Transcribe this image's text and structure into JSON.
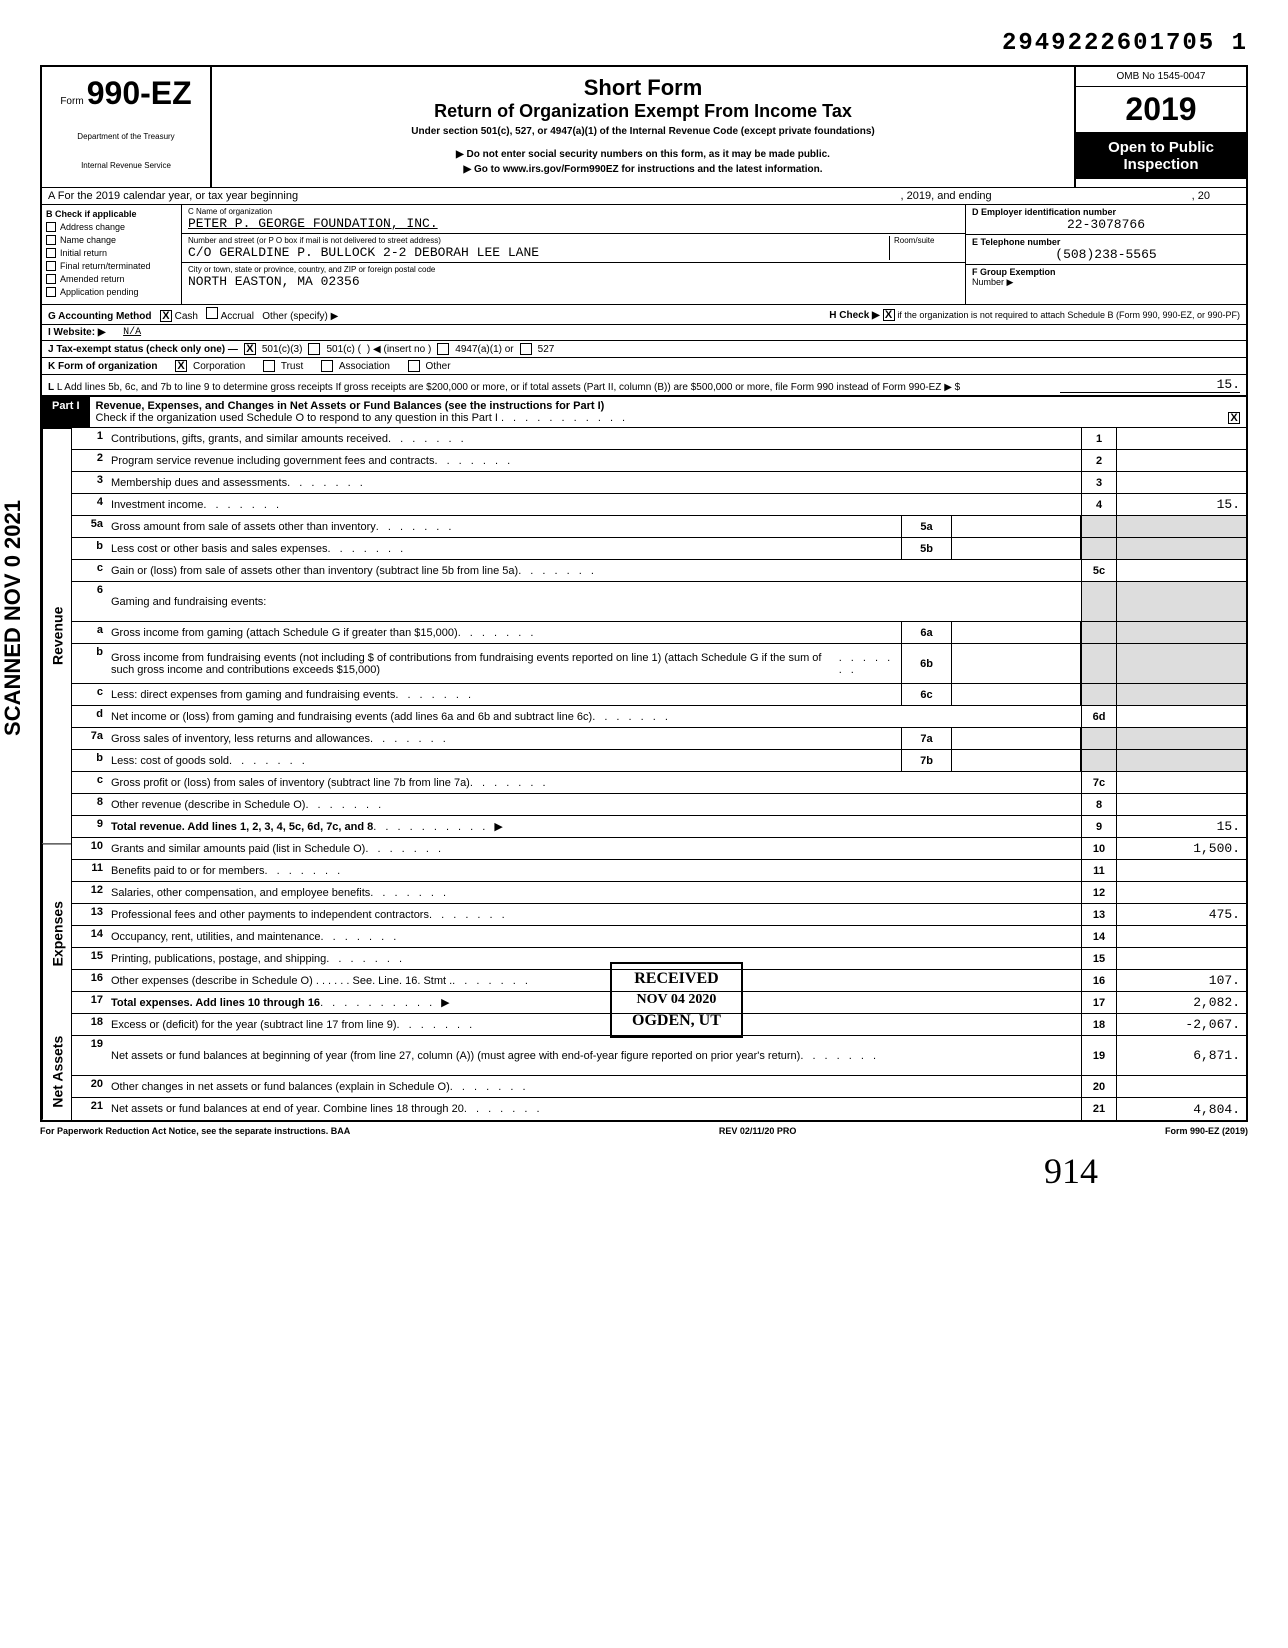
{
  "doc_id": "2949222601705 1",
  "header": {
    "form_prefix": "Form",
    "form_number": "990-EZ",
    "title_main": "Short Form",
    "title_sub": "Return of Organization Exempt From Income Tax",
    "title_line1": "Under section 501(c), 527, or 4947(a)(1) of the Internal Revenue Code (except private foundations)",
    "title_line2": "▶ Do not enter social security numbers on this form, as it may be made public.",
    "title_line3": "▶ Go to www.irs.gov/Form990EZ for instructions and the latest information.",
    "dept1": "Department of the Treasury",
    "dept2": "Internal Revenue Service",
    "omb": "OMB No 1545-0047",
    "year": "2019",
    "public1": "Open to Public",
    "public2": "Inspection"
  },
  "row_a": "A For the 2019 calendar year, or tax year beginning",
  "row_a_mid": ", 2019, and ending",
  "row_a_end": ", 20",
  "col_b": {
    "title": "B Check if applicable",
    "items": [
      "Address change",
      "Name change",
      "Initial return",
      "Final return/terminated",
      "Amended return",
      "Application pending"
    ]
  },
  "col_c": {
    "name_label": "C Name of organization",
    "name_value": "PETER P. GEORGE FOUNDATION, INC.",
    "addr_label": "Number and street (or P O box if mail is not delivered to street address)",
    "room_label": "Room/suite",
    "addr_value": "C/O GERALDINE P. BULLOCK 2-2 DEBORAH LEE LANE",
    "city_label": "City or town, state or province, country, and ZIP or foreign postal code",
    "city_value": "NORTH EASTON, MA 02356"
  },
  "col_d": {
    "ein_label": "D Employer identification number",
    "ein_value": "22-3078766",
    "tel_label": "E Telephone number",
    "tel_value": "(508)238-5565",
    "grp_label": "F Group Exemption",
    "grp_label2": "Number ▶"
  },
  "meta": {
    "g": "G Accounting Method",
    "g_cash": "Cash",
    "g_accrual": "Accrual",
    "g_other": "Other (specify) ▶",
    "h": "H Check ▶",
    "h_text": "if the organization is not required to attach Schedule B (Form 990, 990-EZ, or 990-PF)",
    "i": "I Website: ▶",
    "i_value": "N/A",
    "j": "J Tax-exempt status (check only one) —",
    "j_1": "501(c)(3)",
    "j_2": "501(c) (",
    "j_3": ") ◀ (insert no )",
    "j_4": "4947(a)(1) or",
    "j_5": "527",
    "k": "K Form of organization",
    "k_1": "Corporation",
    "k_2": "Trust",
    "k_3": "Association",
    "k_4": "Other",
    "l": "L Add lines 5b, 6c, and 7b to line 9 to determine gross receipts If gross receipts are $200,000 or more, or if total assets (Part II, column (B)) are $500,000 or more, file Form 990 instead of Form 990-EZ",
    "l_arrow": "▶ $",
    "l_value": "15."
  },
  "part1": {
    "label": "Part I",
    "title": "Revenue, Expenses, and Changes in Net Assets or Fund Balances (see the instructions for Part I)",
    "check": "Check if the organization used Schedule O to respond to any question in this Part I",
    "check_marked": "☒"
  },
  "lines": {
    "l1": {
      "n": "1",
      "d": "Contributions, gifts, grants, and similar amounts received",
      "b": "1",
      "a": ""
    },
    "l2": {
      "n": "2",
      "d": "Program service revenue including government fees and contracts",
      "b": "2",
      "a": ""
    },
    "l3": {
      "n": "3",
      "d": "Membership dues and assessments",
      "b": "3",
      "a": ""
    },
    "l4": {
      "n": "4",
      "d": "Investment income",
      "b": "4",
      "a": "15."
    },
    "l5a": {
      "n": "5a",
      "d": "Gross amount from sale of assets other than inventory",
      "ib": "5a"
    },
    "l5b": {
      "n": "b",
      "d": "Less cost or other basis and sales expenses",
      "ib": "5b"
    },
    "l5c": {
      "n": "c",
      "d": "Gain or (loss) from sale of assets other than inventory (subtract line 5b from line 5a)",
      "b": "5c",
      "a": ""
    },
    "l6": {
      "n": "6",
      "d": "Gaming and fundraising events:"
    },
    "l6a": {
      "n": "a",
      "d": "Gross income from gaming (attach Schedule G if greater than $15,000)",
      "ib": "6a"
    },
    "l6b": {
      "n": "b",
      "d": "Gross income from fundraising events (not including  $                      of contributions from fundraising events reported on line 1) (attach Schedule G if the sum of such gross income and contributions exceeds $15,000)",
      "ib": "6b"
    },
    "l6c": {
      "n": "c",
      "d": "Less: direct expenses from gaming and fundraising events",
      "ib": "6c"
    },
    "l6d": {
      "n": "d",
      "d": "Net income or (loss) from gaming and fundraising events (add lines 6a and 6b and subtract line 6c)",
      "b": "6d",
      "a": ""
    },
    "l7a": {
      "n": "7a",
      "d": "Gross sales of inventory, less returns and allowances",
      "ib": "7a"
    },
    "l7b": {
      "n": "b",
      "d": "Less: cost of goods sold",
      "ib": "7b"
    },
    "l7c": {
      "n": "c",
      "d": "Gross profit or (loss) from sales of inventory (subtract line 7b from line 7a)",
      "b": "7c",
      "a": ""
    },
    "l8": {
      "n": "8",
      "d": "Other revenue (describe in Schedule O)",
      "b": "8",
      "a": ""
    },
    "l9": {
      "n": "9",
      "d": "Total revenue. Add lines 1, 2, 3, 4, 5c, 6d, 7c, and 8",
      "b": "9",
      "a": "15."
    },
    "l10": {
      "n": "10",
      "d": "Grants and similar amounts paid (list in Schedule O)",
      "b": "10",
      "a": "1,500."
    },
    "l11": {
      "n": "11",
      "d": "Benefits paid to or for members",
      "b": "11",
      "a": ""
    },
    "l12": {
      "n": "12",
      "d": "Salaries, other compensation, and employee benefits",
      "b": "12",
      "a": ""
    },
    "l13": {
      "n": "13",
      "d": "Professional fees and other payments to independent contractors",
      "b": "13",
      "a": "475."
    },
    "l14": {
      "n": "14",
      "d": "Occupancy, rent, utilities, and maintenance",
      "b": "14",
      "a": ""
    },
    "l15": {
      "n": "15",
      "d": "Printing, publications, postage, and shipping",
      "b": "15",
      "a": ""
    },
    "l16": {
      "n": "16",
      "d": "Other expenses (describe in Schedule O) . . . . . . See. Line. 16. Stmt .",
      "b": "16",
      "a": "107."
    },
    "l17": {
      "n": "17",
      "d": "Total expenses. Add lines 10 through 16",
      "b": "17",
      "a": "2,082."
    },
    "l18": {
      "n": "18",
      "d": "Excess or (deficit) for the year (subtract line 17 from line 9)",
      "b": "18",
      "a": "-2,067."
    },
    "l19": {
      "n": "19",
      "d": "Net assets or fund balances at beginning of year (from line 27, column (A)) (must agree with end-of-year figure reported on prior year's return)",
      "b": "19",
      "a": "6,871."
    },
    "l20": {
      "n": "20",
      "d": "Other changes in net assets or fund balances (explain in Schedule O)",
      "b": "20",
      "a": ""
    },
    "l21": {
      "n": "21",
      "d": "Net assets or fund balances at end of year. Combine lines 18 through 20",
      "b": "21",
      "a": "4,804."
    }
  },
  "stamp": {
    "l1": "RECEIVED",
    "l2": "NOV 04 2020",
    "l3": "OGDEN, UT"
  },
  "footer": {
    "left": "For Paperwork Reduction Act Notice, see the separate instructions. BAA",
    "mid": "REV 02/11/20 PRO",
    "right": "Form 990-EZ (2019)"
  },
  "scanned": "SCANNED NOV 0 2021",
  "hand": "914"
}
